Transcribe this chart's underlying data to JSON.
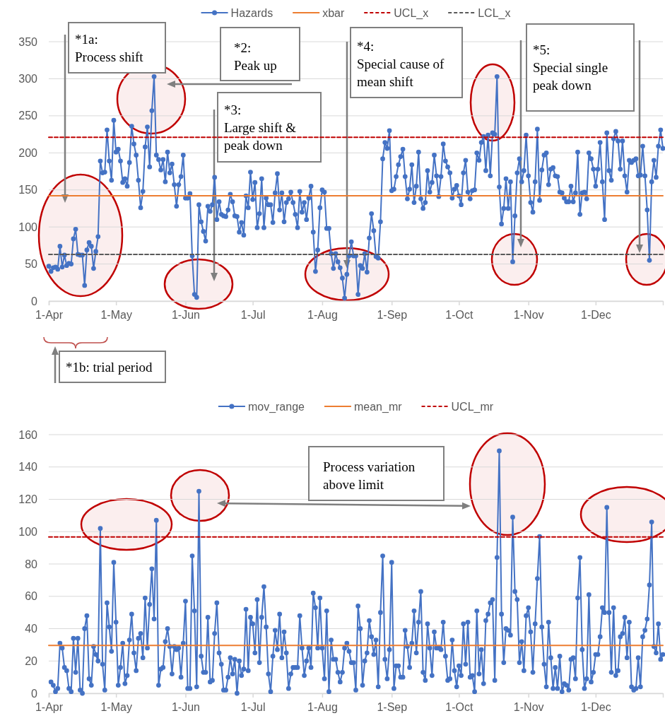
{
  "chart_data": [
    {
      "type": "line",
      "x": [
        "--04-01",
        "--04-02",
        "--04-03",
        "--04-04",
        "--04-05",
        "--04-06",
        "--04-07",
        "--04-08",
        "--04-09",
        "--04-10",
        "--04-11",
        "--04-12",
        "--04-13",
        "--04-14",
        "--04-15",
        "--04-16",
        "--04-17",
        "--04-18",
        "--04-19",
        "--04-20",
        "--04-21",
        "--04-22",
        "--04-23",
        "--04-24",
        "--04-25",
        "--04-26",
        "--04-27",
        "--04-28",
        "--04-29",
        "--04-30",
        "--05-01",
        "--05-02",
        "--05-03",
        "--05-04",
        "--05-05",
        "--05-06",
        "--05-07",
        "--05-08",
        "--05-09",
        "--05-10",
        "--05-11",
        "--05-12",
        "--05-13",
        "--05-14",
        "--05-15",
        "--05-16",
        "--05-17",
        "--05-18",
        "--05-19",
        "--05-20",
        "--05-21",
        "--05-22",
        "--05-23",
        "--05-24",
        "--05-25",
        "--05-26",
        "--05-27",
        "--05-28",
        "--05-29",
        "--05-30",
        "--05-31",
        "--06-01",
        "--06-02",
        "--06-03",
        "--06-04",
        "--06-05",
        "--06-06",
        "--06-07",
        "--06-08",
        "--06-09",
        "--06-10",
        "--06-11",
        "--06-12",
        "--06-13",
        "--06-14",
        "--06-15",
        "--06-16",
        "--06-17",
        "--06-18",
        "--06-19",
        "--06-20",
        "--06-21",
        "--06-22",
        "--06-23",
        "--06-24",
        "--06-25",
        "--06-26",
        "--06-27",
        "--06-28",
        "--06-29",
        "--06-30",
        "--07-01",
        "--07-02",
        "--07-03",
        "--07-04",
        "--07-05",
        "--07-06",
        "--07-07",
        "--07-08",
        "--07-09",
        "--07-10",
        "--07-11",
        "--07-12",
        "--07-13",
        "--07-14",
        "--07-15",
        "--07-16",
        "--07-17",
        "--07-18",
        "--07-19",
        "--07-20",
        "--07-21",
        "--07-22",
        "--07-23",
        "--07-24",
        "--07-25",
        "--07-26",
        "--07-27",
        "--07-28",
        "--07-29",
        "--07-30",
        "--07-31",
        "--08-01",
        "--08-02",
        "--08-03",
        "--08-04",
        "--08-05",
        "--08-06",
        "--08-07",
        "--08-08",
        "--08-09",
        "--08-10",
        "--08-11",
        "--08-12",
        "--08-13",
        "--08-14",
        "--08-15",
        "--08-16",
        "--08-17",
        "--08-18",
        "--08-19",
        "--08-20",
        "--08-21",
        "--08-22",
        "--08-23",
        "--08-24",
        "--08-25",
        "--08-26",
        "--08-27",
        "--08-28",
        "--08-29",
        "--08-30",
        "--08-31",
        "--09-01",
        "--09-02",
        "--09-03",
        "--09-04",
        "--09-05",
        "--09-06",
        "--09-07",
        "--09-08",
        "--09-09",
        "--09-10",
        "--09-11",
        "--09-12",
        "--09-13",
        "--09-14",
        "--09-15",
        "--09-16",
        "--09-17",
        "--09-18",
        "--09-19",
        "--09-20",
        "--09-21",
        "--09-22",
        "--09-23",
        "--09-24",
        "--09-25",
        "--09-26",
        "--09-27",
        "--09-28",
        "--09-29",
        "--09-30",
        "--10-01",
        "--10-02",
        "--10-03",
        "--10-04",
        "--10-05",
        "--10-06",
        "--10-07",
        "--10-08",
        "--10-09",
        "--10-10",
        "--10-11",
        "--10-12",
        "--10-13",
        "--10-14",
        "--10-15",
        "--10-16",
        "--10-17",
        "--10-18",
        "--10-19",
        "--10-20",
        "--10-21",
        "--10-22",
        "--10-23",
        "--10-24",
        "--10-25",
        "--10-26",
        "--10-27",
        "--10-28",
        "--10-29",
        "--10-30",
        "--10-31",
        "--11-01",
        "--11-02",
        "--11-03",
        "--11-04",
        "--11-05",
        "--11-06",
        "--11-07",
        "--11-08",
        "--11-09",
        "--11-10",
        "--11-11",
        "--11-12",
        "--11-13",
        "--11-14",
        "--11-15",
        "--11-16",
        "--11-17",
        "--11-18",
        "--11-19",
        "--11-20",
        "--11-21",
        "--11-22",
        "--11-23",
        "--11-24",
        "--11-25",
        "--11-26",
        "--11-27",
        "--11-28",
        "--11-29",
        "--11-30",
        "--12-01",
        "--12-02",
        "--12-03",
        "--12-04",
        "--12-05",
        "--12-06",
        "--12-07",
        "--12-08",
        "--12-09",
        "--12-10",
        "--12-11",
        "--12-12",
        "--12-13",
        "--12-14",
        "--12-15",
        "--12-16",
        "--12-17",
        "--12-18",
        "--12-19",
        "--12-20",
        "--12-21",
        "--12-22",
        "--12-23",
        "--12-24",
        "--12-25",
        "--12-26",
        "--12-27",
        "--12-28",
        "--12-29",
        "--12-30",
        "--12-31"
      ],
      "series": [
        {
          "name": "Hazards",
          "color": "#4472c4",
          "marker": "circle",
          "values": [
            47,
            40,
            45,
            46,
            43,
            74,
            46,
            62,
            48,
            51,
            50,
            84,
            97,
            63,
            62,
            62,
            21,
            69,
            79,
            74,
            44,
            67,
            87,
            189,
            173,
            174,
            231,
            189,
            163,
            244,
            201,
            205,
            189,
            160,
            165,
            155,
            187,
            236,
            212,
            197,
            163,
            126,
            148,
            208,
            235,
            181,
            257,
            303,
            197,
            191,
            177,
            191,
            161,
            201,
            173,
            185,
            157,
            128,
            157,
            168,
            197,
            139,
            139,
            145,
            61,
            9,
            5,
            130,
            107,
            94,
            81,
            128,
            121,
            130,
            167,
            110,
            134,
            117,
            115,
            114,
            123,
            144,
            134,
            115,
            114,
            93,
            106,
            89,
            142,
            126,
            174,
            137,
            160,
            99,
            118,
            165,
            99,
            139,
            130,
            130,
            106,
            146,
            172,
            123,
            146,
            107,
            133,
            138,
            147,
            133,
            117,
            99,
            148,
            120,
            133,
            110,
            139,
            155,
            93,
            40,
            69,
            126,
            150,
            147,
            98,
            98,
            64,
            44,
            64,
            53,
            45,
            31,
            4,
            36,
            61,
            80,
            61,
            61,
            9,
            48,
            44,
            64,
            39,
            85,
            118,
            95,
            60,
            58,
            107,
            192,
            214,
            206,
            230,
            149,
            151,
            168,
            184,
            195,
            205,
            168,
            138,
            151,
            184,
            133,
            155,
            201,
            138,
            125,
            133,
            176,
            147,
            160,
            197,
            169,
            141,
            168,
            212,
            189,
            181,
            173,
            139,
            151,
            156,
            142,
            130,
            173,
            190,
            147,
            138,
            149,
            150,
            200,
            190,
            214,
            222,
            176,
            224,
            169,
            227,
            225,
            303,
            154,
            104,
            125,
            165,
            125,
            161,
            53,
            115,
            173,
            192,
            161,
            176,
            224,
            169,
            133,
            120,
            161,
            232,
            136,
            177,
            197,
            200,
            157,
            178,
            180,
            169,
            168,
            147,
            146,
            139,
            134,
            134,
            155,
            134,
            146,
            201,
            117,
            146,
            147,
            138,
            200,
            192,
            178,
            155,
            178,
            214,
            161,
            110,
            227,
            176,
            163,
            219,
            229,
            216,
            178,
            216,
            169,
            147,
            190,
            187,
            190,
            192,
            169,
            170,
            209,
            169,
            123,
            55,
            161,
            190,
            167,
            209,
            231,
            206
          ]
        },
        {
          "name": "xbar",
          "color": "#ed7d31",
          "x": [
            "--04-01",
            "--12-31"
          ],
          "values": [
            142,
            142
          ]
        },
        {
          "name": "UCL_x",
          "color": "#c00000",
          "line_style": "dashed",
          "x": [
            "--04-01",
            "--12-31"
          ],
          "values": [
            221,
            221
          ]
        },
        {
          "name": "LCL_x",
          "color": "#595959",
          "line_style": "dashed",
          "x": [
            "--04-01",
            "--12-31"
          ],
          "values": [
            63,
            63
          ]
        }
      ],
      "xlim": [
        "--04-01",
        "--12-31"
      ],
      "xticks": [
        {
          "value": "--04-01",
          "label": "1-Apr"
        },
        {
          "value": "--05-01",
          "label": "1-May"
        },
        {
          "value": "--06-01",
          "label": "1-Jun"
        },
        {
          "value": "--07-01",
          "label": "1-Jul"
        },
        {
          "value": "--08-01",
          "label": "1-Aug"
        },
        {
          "value": "--09-01",
          "label": "1-Sep"
        },
        {
          "value": "--10-01",
          "label": "1-Oct"
        },
        {
          "value": "--11-01",
          "label": "1-Nov"
        },
        {
          "value": "--12-01",
          "label": "1-Dec"
        }
      ],
      "ylim": [
        0,
        350
      ],
      "yticks": [
        0,
        50,
        100,
        150,
        200,
        250,
        300,
        350
      ],
      "grid": "y",
      "legend": "top",
      "annotations": [
        "*1a:\nProcess shift",
        "*2:\nPeak up",
        "*3:\nLarge shift &\npeak down",
        "*4:\nSpecial cause of\nmean shift",
        "*5:\nSpecial single\npeak down",
        "*1b: trial period"
      ]
    },
    {
      "type": "line",
      "x": [
        "--04-02",
        "--04-03",
        "--04-04",
        "--04-05",
        "--04-06",
        "--04-07",
        "--04-08",
        "--04-09",
        "--04-10",
        "--04-11",
        "--04-12",
        "--04-13",
        "--04-14",
        "--04-15",
        "--04-16",
        "--04-17",
        "--04-18",
        "--04-19",
        "--04-20",
        "--04-21",
        "--04-22",
        "--04-23",
        "--04-24",
        "--04-25",
        "--04-26",
        "--04-27",
        "--04-28",
        "--04-29",
        "--04-30",
        "--05-01",
        "--05-02",
        "--05-03",
        "--05-04",
        "--05-05",
        "--05-06",
        "--05-07",
        "--05-08",
        "--05-09",
        "--05-10",
        "--05-11",
        "--05-12",
        "--05-13",
        "--05-14",
        "--05-15",
        "--05-16",
        "--05-17",
        "--05-18",
        "--05-19",
        "--05-20",
        "--05-21",
        "--05-22",
        "--05-23",
        "--05-24",
        "--05-25",
        "--05-26",
        "--05-27",
        "--05-28",
        "--05-29",
        "--05-30",
        "--05-31",
        "--06-01",
        "--06-02",
        "--06-03",
        "--06-04",
        "--06-05",
        "--06-06",
        "--06-07",
        "--06-08",
        "--06-09",
        "--06-10",
        "--06-11",
        "--06-12",
        "--06-13",
        "--06-14",
        "--06-15",
        "--06-16",
        "--06-17",
        "--06-18",
        "--06-19",
        "--06-20",
        "--06-21",
        "--06-22",
        "--06-23",
        "--06-24",
        "--06-25",
        "--06-26",
        "--06-27",
        "--06-28",
        "--06-29",
        "--06-30",
        "--07-01",
        "--07-02",
        "--07-03",
        "--07-04",
        "--07-05",
        "--07-06",
        "--07-07",
        "--07-08",
        "--07-09",
        "--07-10",
        "--07-11",
        "--07-12",
        "--07-13",
        "--07-14",
        "--07-15",
        "--07-16",
        "--07-17",
        "--07-18",
        "--07-19",
        "--07-20",
        "--07-21",
        "--07-22",
        "--07-23",
        "--07-24",
        "--07-25",
        "--07-26",
        "--07-27",
        "--07-28",
        "--07-29",
        "--07-30",
        "--07-31",
        "--08-01",
        "--08-02",
        "--08-03",
        "--08-04",
        "--08-05",
        "--08-06",
        "--08-07",
        "--08-08",
        "--08-09",
        "--08-10",
        "--08-11",
        "--08-12",
        "--08-13",
        "--08-14",
        "--08-15",
        "--08-16",
        "--08-17",
        "--08-18",
        "--08-19",
        "--08-20",
        "--08-21",
        "--08-22",
        "--08-23",
        "--08-24",
        "--08-25",
        "--08-26",
        "--08-27",
        "--08-28",
        "--08-29",
        "--08-30",
        "--08-31",
        "--09-01",
        "--09-02",
        "--09-03",
        "--09-04",
        "--09-05",
        "--09-06",
        "--09-07",
        "--09-08",
        "--09-09",
        "--09-10",
        "--09-11",
        "--09-12",
        "--09-13",
        "--09-14",
        "--09-15",
        "--09-16",
        "--09-17",
        "--09-18",
        "--09-19",
        "--09-20",
        "--09-21",
        "--09-22",
        "--09-23",
        "--09-24",
        "--09-25",
        "--09-26",
        "--09-27",
        "--09-28",
        "--09-29",
        "--09-30",
        "--10-01",
        "--10-02",
        "--10-03",
        "--10-04",
        "--10-05",
        "--10-06",
        "--10-07",
        "--10-08",
        "--10-09",
        "--10-10",
        "--10-11",
        "--10-12",
        "--10-13",
        "--10-14",
        "--10-15",
        "--10-16",
        "--10-17",
        "--10-18",
        "--10-19",
        "--10-20",
        "--10-21",
        "--10-22",
        "--10-23",
        "--10-24",
        "--10-25",
        "--10-26",
        "--10-27",
        "--10-28",
        "--10-29",
        "--10-30",
        "--10-31",
        "--11-01",
        "--11-02",
        "--11-03",
        "--11-04",
        "--11-05",
        "--11-06",
        "--11-07",
        "--11-08",
        "--11-09",
        "--11-10",
        "--11-11",
        "--11-12",
        "--11-13",
        "--11-14",
        "--11-15",
        "--11-16",
        "--11-17",
        "--11-18",
        "--11-19",
        "--11-20",
        "--11-21",
        "--11-22",
        "--11-23",
        "--11-24",
        "--11-25",
        "--11-26",
        "--11-27",
        "--11-28",
        "--11-29",
        "--11-30",
        "--12-01",
        "--12-02",
        "--12-03",
        "--12-04",
        "--12-05",
        "--12-06",
        "--12-07",
        "--12-08",
        "--12-09",
        "--12-10",
        "--12-11",
        "--12-12",
        "--12-13",
        "--12-14",
        "--12-15",
        "--12-16",
        "--12-17",
        "--12-18",
        "--12-19",
        "--12-20",
        "--12-21",
        "--12-22",
        "--12-23",
        "--12-24",
        "--12-25",
        "--12-26",
        "--12-27",
        "--12-28",
        "--12-29",
        "--12-30",
        "--12-31"
      ],
      "series": [
        {
          "name": "mov_range",
          "color": "#4472c4",
          "marker": "circle",
          "values": [
            7,
            5,
            1,
            3,
            31,
            28,
            16,
            14,
            3,
            1,
            34,
            13,
            34,
            2,
            0,
            40,
            48,
            9,
            5,
            29,
            24,
            20,
            102,
            18,
            2,
            56,
            41,
            26,
            81,
            44,
            5,
            16,
            31,
            6,
            11,
            33,
            49,
            25,
            14,
            34,
            37,
            22,
            59,
            28,
            55,
            77,
            46,
            107,
            5,
            15,
            16,
            32,
            40,
            29,
            12,
            29,
            27,
            28,
            10,
            31,
            57,
            3,
            3,
            85,
            51,
            4,
            125,
            23,
            13,
            13,
            47,
            7,
            8,
            37,
            56,
            25,
            18,
            2,
            2,
            10,
            22,
            12,
            21,
            0,
            20,
            11,
            15,
            52,
            14,
            47,
            43,
            25,
            58,
            19,
            47,
            66,
            41,
            12,
            1,
            23,
            39,
            27,
            49,
            22,
            38,
            25,
            3,
            12,
            16,
            16,
            16,
            48,
            28,
            11,
            20,
            28,
            16,
            62,
            53,
            28,
            59,
            28,
            9,
            51,
            1,
            33,
            21,
            21,
            13,
            7,
            13,
            28,
            31,
            26,
            19,
            19,
            2,
            54,
            40,
            5,
            20,
            25,
            45,
            35,
            24,
            33,
            4,
            50,
            85,
            21,
            9,
            27,
            81,
            3,
            17,
            17,
            10,
            10,
            39,
            29,
            16,
            31,
            51,
            25,
            44,
            63,
            13,
            8,
            43,
            28,
            11,
            38,
            28,
            28,
            27,
            44,
            23,
            8,
            9,
            33,
            14,
            4,
            17,
            11,
            43,
            18,
            44,
            10,
            11,
            1,
            51,
            12,
            27,
            6,
            45,
            49,
            56,
            58,
            8,
            84,
            150,
            49,
            19,
            40,
            39,
            36,
            109,
            63,
            58,
            19,
            32,
            14,
            48,
            53,
            38,
            13,
            43,
            71,
            97,
            41,
            18,
            4,
            44,
            22,
            3,
            16,
            3,
            23,
            1,
            6,
            5,
            2,
            21,
            22,
            9,
            59,
            84,
            27,
            3,
            9,
            61,
            7,
            13,
            24,
            24,
            35,
            53,
            50,
            115,
            50,
            13,
            53,
            11,
            14,
            35,
            37,
            47,
            22,
            44,
            4,
            2,
            3,
            22,
            4,
            35,
            39,
            46,
            67,
            106,
            29,
            25,
            43,
            21,
            24
          ]
        },
        {
          "name": "mean_mr",
          "color": "#ed7d31",
          "x": [
            "--04-01",
            "--12-31"
          ],
          "values": [
            29.6,
            29.6
          ]
        },
        {
          "name": "UCL_mr",
          "color": "#c00000",
          "line_style": "dashed",
          "x": [
            "--04-01",
            "--12-31"
          ],
          "values": [
            96.7,
            96.7
          ]
        }
      ],
      "xlim": [
        "--04-01",
        "--12-31"
      ],
      "xticks": [
        {
          "value": "--04-01",
          "label": "1-Apr"
        },
        {
          "value": "--05-01",
          "label": "1-May"
        },
        {
          "value": "--06-01",
          "label": "1-Jun"
        },
        {
          "value": "--07-01",
          "label": "1-Jul"
        },
        {
          "value": "--08-01",
          "label": "1-Aug"
        },
        {
          "value": "--09-01",
          "label": "1-Sep"
        },
        {
          "value": "--10-01",
          "label": "1-Oct"
        },
        {
          "value": "--11-01",
          "label": "1-Nov"
        },
        {
          "value": "--12-01",
          "label": "1-Dec"
        }
      ],
      "ylim": [
        0,
        160
      ],
      "yticks": [
        0,
        20,
        40,
        60,
        80,
        100,
        120,
        140,
        160
      ],
      "grid": "y",
      "legend": "top",
      "annotations": [
        "Process variation\nabove limit"
      ]
    }
  ]
}
